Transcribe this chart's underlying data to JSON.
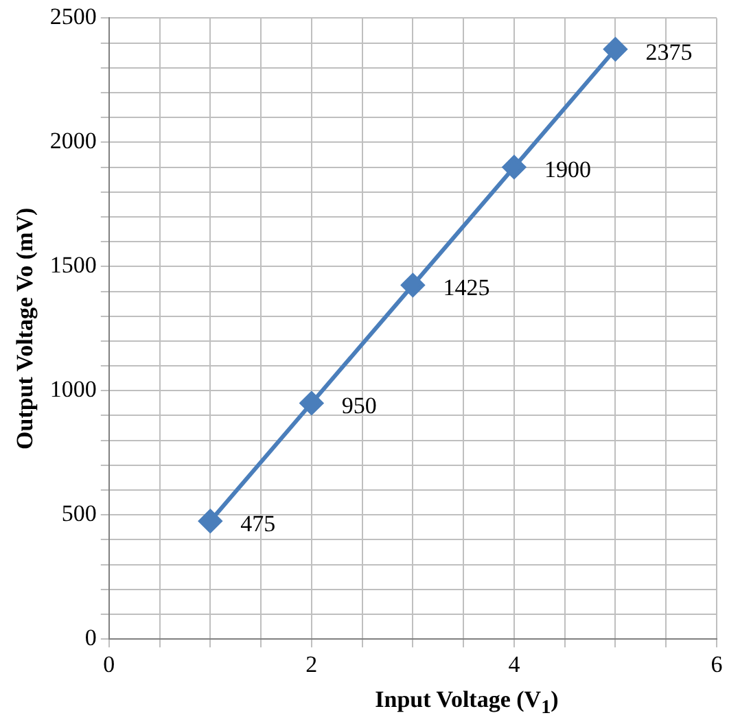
{
  "chart_data": {
    "type": "line",
    "xlabel": "Input Voltage (V$_{1}$)",
    "ylabel": "Output Voltage Vo (mV)",
    "x": [
      1,
      2,
      3,
      4,
      5
    ],
    "series": [
      {
        "color": "#4a7ebb",
        "values": [
          475,
          950,
          1425,
          1900,
          2375
        ]
      }
    ],
    "data_labels": true,
    "marker": "diamond",
    "line_style": "solid",
    "grid": true,
    "legend": false,
    "xlim": [
      0,
      6
    ],
    "ylim": [
      0,
      2500
    ],
    "xticks": [
      0,
      {
        "value": 0.5,
        "label": null
      },
      {
        "value": 1,
        "label": null
      },
      {
        "value": 1.5,
        "label": null
      },
      2,
      {
        "value": 2.5,
        "label": null
      },
      {
        "value": 3,
        "label": null
      },
      {
        "value": 3.5,
        "label": null
      },
      4,
      {
        "value": 4.5,
        "label": null
      },
      {
        "value": 5,
        "label": null
      },
      {
        "value": 5.5,
        "label": null
      },
      6
    ],
    "yticks": [
      0,
      {
        "value": 100,
        "label": null
      },
      {
        "value": 200,
        "label": null
      },
      {
        "value": 300,
        "label": null
      },
      {
        "value": 400,
        "label": null
      },
      500,
      {
        "value": 600,
        "label": null
      },
      {
        "value": 700,
        "label": null
      },
      {
        "value": 800,
        "label": null
      },
      {
        "value": 900,
        "label": null
      },
      1000,
      {
        "value": 1100,
        "label": null
      },
      {
        "value": 1200,
        "label": null
      },
      {
        "value": 1300,
        "label": null
      },
      {
        "value": 1400,
        "label": null
      },
      1500,
      {
        "value": 1600,
        "label": null
      },
      {
        "value": 1700,
        "label": null
      },
      {
        "value": 1800,
        "label": null
      },
      {
        "value": 1900,
        "label": null
      },
      2000,
      {
        "value": 2100,
        "label": null
      },
      {
        "value": 2200,
        "label": null
      },
      {
        "value": 2300,
        "label": null
      },
      {
        "value": 2400,
        "label": null
      },
      2500
    ]
  }
}
